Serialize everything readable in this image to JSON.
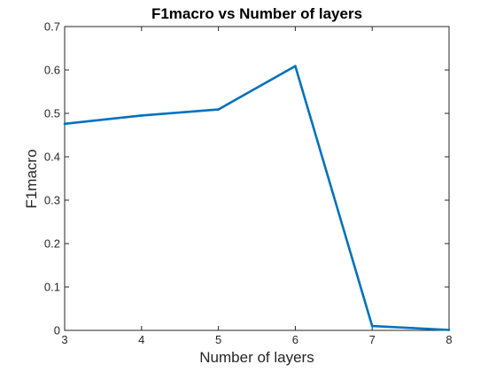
{
  "chart_data": {
    "type": "line",
    "title": "F1macro vs Number of layers",
    "xlabel": "Number of layers",
    "ylabel": "F1macro",
    "xlim": [
      3,
      8
    ],
    "ylim": [
      0,
      0.7
    ],
    "xticks": [
      3,
      4,
      5,
      6,
      7,
      8
    ],
    "yticks": [
      "0",
      "0.1",
      "0.2",
      "0.3",
      "0.4",
      "0.5",
      "0.6",
      "0.7"
    ],
    "grid": false,
    "series": [
      {
        "x": [
          3,
          4,
          5,
          6,
          7,
          8
        ],
        "y": [
          0.476,
          0.495,
          0.509,
          0.609,
          0.01,
          0.001
        ],
        "color": "#0072BD"
      }
    ]
  }
}
